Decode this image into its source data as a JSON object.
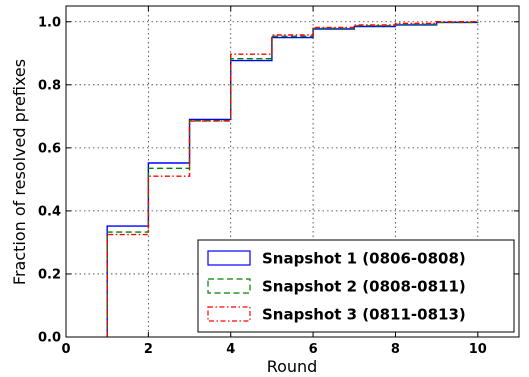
{
  "chart_data": {
    "type": "line",
    "step": "post",
    "xlabel": "Round",
    "ylabel": "Fraction of resolved prefixes",
    "xlim": [
      0,
      11
    ],
    "ylim": [
      0.0,
      1.05
    ],
    "xticks": [
      0,
      2,
      4,
      6,
      8,
      10
    ],
    "xtick_labels": [
      "0",
      "2",
      "4",
      "6",
      "8",
      "10"
    ],
    "yticks": [
      0.0,
      0.2,
      0.4,
      0.6,
      0.8,
      1.0
    ],
    "ytick_labels": [
      "0.0",
      "0.2",
      "0.4",
      "0.6",
      "0.8",
      "1.0"
    ],
    "grid": true,
    "legend_position": "lower-right",
    "series": [
      {
        "name": "Snapshot 1 (0806-0808)",
        "color": "#0000ff",
        "linestyle": "solid",
        "x": [
          1,
          2,
          3,
          4,
          5,
          6,
          7,
          8,
          9,
          10
        ],
        "y": [
          0.352,
          0.552,
          0.69,
          0.877,
          0.95,
          0.977,
          0.985,
          0.99,
          0.998,
          1.0
        ]
      },
      {
        "name": "Snapshot 2 (0808-0811)",
        "color": "#008000",
        "linestyle": "dashed",
        "x": [
          1,
          2,
          3,
          4,
          5,
          6,
          7,
          8,
          9,
          10
        ],
        "y": [
          0.333,
          0.535,
          0.686,
          0.883,
          0.954,
          0.979,
          0.987,
          0.992,
          0.998,
          1.0
        ]
      },
      {
        "name": "Snapshot 3 (0811-0813)",
        "color": "#ff0000",
        "linestyle": "dashdot",
        "x": [
          1,
          2,
          3,
          4,
          5,
          6,
          7,
          8,
          9,
          10
        ],
        "y": [
          0.325,
          0.51,
          0.685,
          0.897,
          0.958,
          0.982,
          0.99,
          0.995,
          1.0,
          1.0
        ]
      }
    ]
  }
}
